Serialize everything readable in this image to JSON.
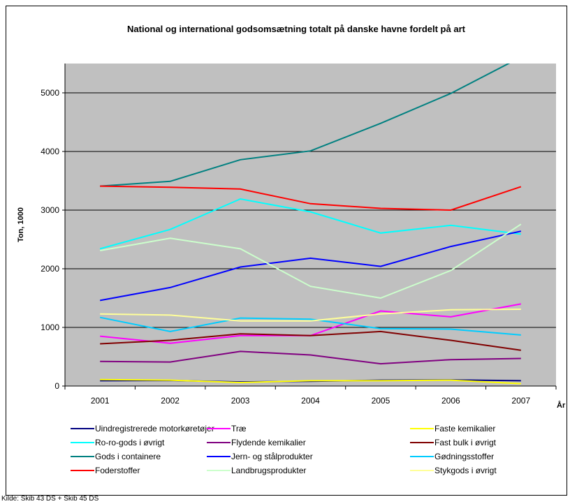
{
  "chart_data": {
    "type": "line",
    "title": "National og international godsomsætning totalt på danske havne fordelt på art",
    "xlabel": "År",
    "ylabel": "Ton, 1000",
    "categories": [
      "2001",
      "2002",
      "2003",
      "2004",
      "2005",
      "2006",
      "2007"
    ],
    "ylim": [
      0,
      5500
    ],
    "yticks": [
      0,
      1000,
      2000,
      3000,
      4000,
      5000
    ],
    "grid": true,
    "legend_position": "bottom",
    "series": [
      {
        "name": "Uindregistrerede motorkøretøjer",
        "color": "#000080",
        "values": [
          90,
          95,
          70,
          80,
          100,
          105,
          90
        ]
      },
      {
        "name": "Træ",
        "color": "#ff00ff",
        "values": [
          850,
          730,
          860,
          860,
          1280,
          1180,
          1400
        ]
      },
      {
        "name": "Faste kemikalier",
        "color": "#ffff00",
        "values": [
          110,
          100,
          60,
          90,
          90,
          100,
          40
        ]
      },
      {
        "name": "Ro-ro-gods i øvrigt",
        "color": "#00ffff",
        "values": [
          2340,
          2670,
          3190,
          2970,
          2610,
          2740,
          2590
        ]
      },
      {
        "name": "Flydende kemikalier",
        "color": "#800080",
        "values": [
          420,
          410,
          590,
          530,
          380,
          450,
          470
        ]
      },
      {
        "name": "Fast bulk i øvrigt",
        "color": "#800000",
        "values": [
          720,
          780,
          890,
          860,
          930,
          780,
          610
        ]
      },
      {
        "name": "Gods i containere",
        "color": "#008080",
        "values": [
          3410,
          3490,
          3860,
          4010,
          4480,
          4990,
          5610
        ]
      },
      {
        "name": "Jern- og stålprodukter",
        "color": "#0000ff",
        "values": [
          1460,
          1680,
          2030,
          2180,
          2040,
          2380,
          2640
        ]
      },
      {
        "name": "Gødningsstoffer",
        "color": "#00ccff",
        "values": [
          1170,
          930,
          1160,
          1140,
          980,
          970,
          870
        ]
      },
      {
        "name": "Foderstoffer",
        "color": "#ff0000",
        "values": [
          3410,
          3390,
          3360,
          3110,
          3030,
          3000,
          3400
        ]
      },
      {
        "name": "Landbrugsprodukter",
        "color": "#ccffcc",
        "values": [
          2310,
          2520,
          2340,
          1700,
          1500,
          1970,
          2760
        ]
      },
      {
        "name": "Stykgods i øvrigt",
        "color": "#ffff99",
        "values": [
          1230,
          1210,
          1110,
          1110,
          1230,
          1300,
          1310
        ]
      }
    ]
  },
  "source_note": "Kilde: Skib 43 DS + Skib 45 DS",
  "colors": {
    "plot_background": "#c0c0c0",
    "gridline": "#000000"
  }
}
